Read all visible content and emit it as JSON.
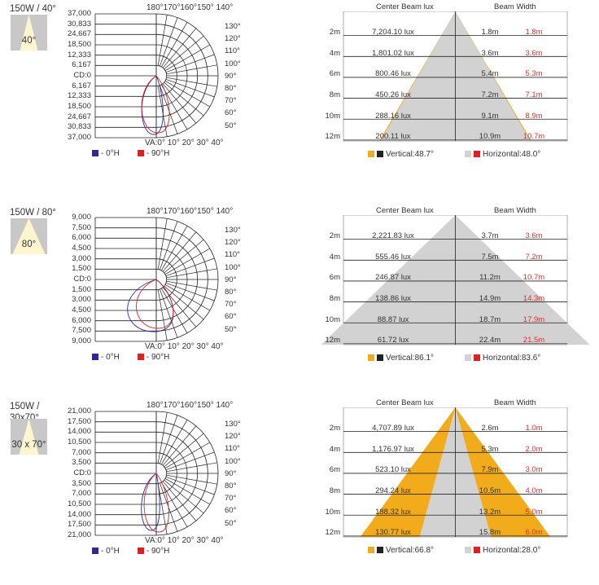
{
  "colors": {
    "vertical_fill": "#f2ab1a",
    "horizontal_fill": "#d2d2d2",
    "series_0h": "#2a2a9a",
    "series_90h": "#e02020",
    "red_text": "#e03030"
  },
  "polar_labels": {
    "top": "180°170°160°150° 140°",
    "bottom": "VA:0° 10° 20° 30° 40°",
    "right": [
      "130°",
      "120°",
      "110°",
      "100°",
      "90°",
      "80°",
      "70°",
      "60°",
      "50°"
    ]
  },
  "beam_headers": {
    "center": "Center Beam lux",
    "width": "Beam Width"
  },
  "rows_labels": [
    "2m",
    "4m",
    "6m",
    "8m",
    "10m",
    "12m"
  ],
  "chart_data": [
    {
      "type": "polar",
      "title": "150W / 40°",
      "thumb_label": "40°",
      "cd_ticks": [
        "37,000",
        "30,833",
        "24,667",
        "18,500",
        "12,333",
        "6,167",
        "CD:0",
        "6,167",
        "12,333",
        "18,500",
        "24,667",
        "30,833",
        "37,000"
      ],
      "legend": [
        "- 0°H",
        "- 90°H"
      ]
    },
    {
      "type": "beam",
      "center_lux": [
        "7,204.10 lux",
        "1,801.02 lux",
        "800.46 lux",
        "450.26 lux",
        "288.16 lux",
        "200.11 lux"
      ],
      "width_vertical": [
        "1.8m",
        "3.6m",
        "5.4m",
        "7.2m",
        "9.1m",
        "10.9m"
      ],
      "width_horizontal": [
        "1.8m",
        "3.6m",
        "5.3m",
        "7.1m",
        "8.9m",
        "10.7m"
      ],
      "legend_vertical": "Vertical:48.7°",
      "legend_horizontal": "Horizontal:48.0°"
    },
    {
      "type": "polar",
      "title": "150W / 80°",
      "thumb_label": "80°",
      "cd_ticks": [
        "9,000",
        "7,500",
        "6,000",
        "4,500",
        "3,000",
        "1,500",
        "CD:0",
        "1,500",
        "3,000",
        "4,500",
        "6,000",
        "7,500",
        "9,000"
      ],
      "legend": [
        "- 0°H",
        "- 90°H"
      ]
    },
    {
      "type": "beam",
      "center_lux": [
        "2,221.83 lux",
        "555.46 lux",
        "246.87 lux",
        "138.86 lux",
        "88.87 lux",
        "61.72 lux"
      ],
      "width_vertical": [
        "3.7m",
        "7.5m",
        "11.2m",
        "14.9m",
        "18.7m",
        "22.4m"
      ],
      "width_horizontal": [
        "3.6m",
        "7.2m",
        "10.7m",
        "14.3m",
        "17.9m",
        "21.5m"
      ],
      "legend_vertical": "Vertical:86.1°",
      "legend_horizontal": "Horizontal:83.6°"
    },
    {
      "type": "polar",
      "title": "150W /\n30x70°",
      "thumb_label": "30 x 70°",
      "cd_ticks": [
        "21,000",
        "17,500",
        "14,000",
        "10,500",
        "7,000",
        "3,500",
        "CD:0",
        "3,500",
        "7,000",
        "10,500",
        "14,000",
        "17,500",
        "21,000"
      ],
      "legend": [
        "- 0°H",
        "- 90°H"
      ]
    },
    {
      "type": "beam",
      "center_lux": [
        "4,707.89 lux",
        "1,176.97 lux",
        "523.10 lux",
        "294.24 lux",
        "188.32 lux",
        "130.77 lux"
      ],
      "width_vertical": [
        "2.6m",
        "5.3m",
        "7.9m",
        "10.5m",
        "13.2m",
        "15.8m"
      ],
      "width_horizontal": [
        "1.0m",
        "2.0m",
        "3.0m",
        "4.0m",
        "5.0m",
        "6.0m"
      ],
      "legend_vertical": "Vertical:66.8°",
      "legend_horizontal": "Horizontal:28.0°"
    }
  ]
}
